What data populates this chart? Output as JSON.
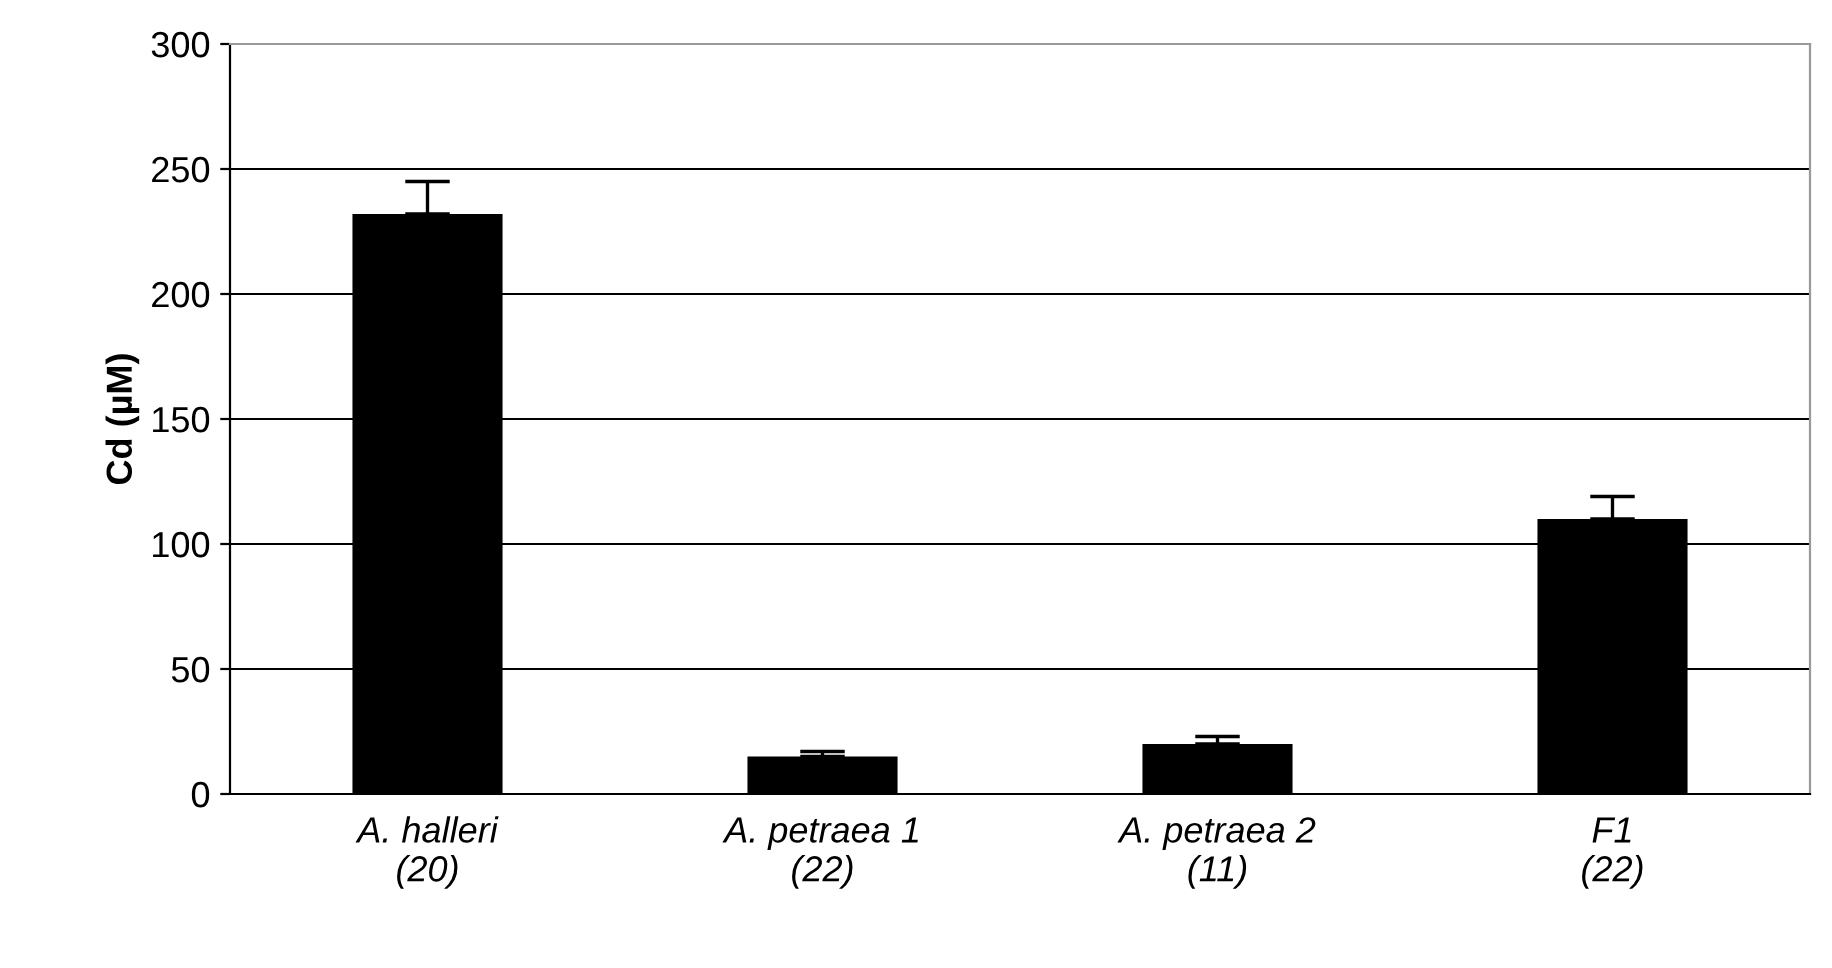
{
  "chart_data": {
    "type": "bar",
    "ylabel": "Cd (µM)",
    "categories": [
      "A. halleri\n(20)",
      "A. petraea 1\n(22)",
      "A. petraea 2\n(11)",
      "F1\n(22)"
    ],
    "values": [
      232,
      15,
      20,
      110
    ],
    "errors": [
      [
        232,
        245
      ],
      [
        15,
        17
      ],
      [
        20,
        23
      ],
      [
        110,
        119
      ]
    ],
    "color": "#000000",
    "ylim": [
      0,
      300
    ],
    "yticks": [
      0,
      50,
      100,
      150,
      200,
      250,
      300
    ],
    "grid": "y",
    "legend": false
  }
}
